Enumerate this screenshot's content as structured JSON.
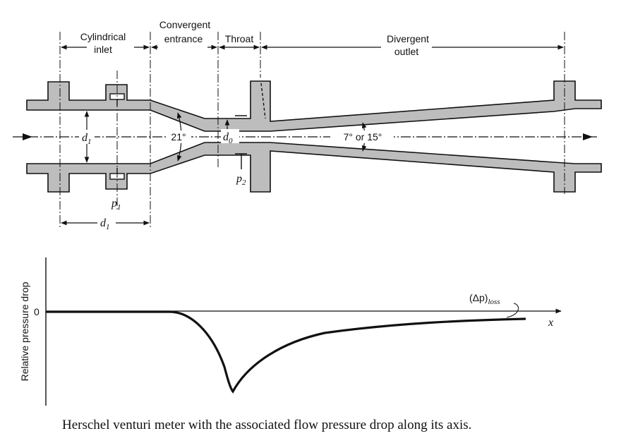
{
  "diagram": {
    "sections": {
      "cylindrical_inlet": [
        "Cylindrical",
        "inlet"
      ],
      "convergent_entrance": [
        "Convergent",
        "entrance"
      ],
      "throat": "Throat",
      "divergent_outlet": [
        "Divergent",
        "outlet"
      ]
    },
    "angles": {
      "convergent": "21°",
      "divergent": "7° or 15°"
    },
    "symbols": {
      "d1": "d",
      "d1_sub": "1",
      "d0": "d",
      "d0_sub": "0",
      "p1": "p",
      "p1_sub": "1",
      "p2": "p",
      "p2_sub": "2"
    }
  },
  "chart": {
    "ylabel": "Relative pressure drop",
    "zero_label": "0",
    "xlabel": "x",
    "loss_label": "(Δp)",
    "loss_sub": "loss"
  },
  "caption": "Herschel venturi meter with the associated flow pressure drop along its axis."
}
